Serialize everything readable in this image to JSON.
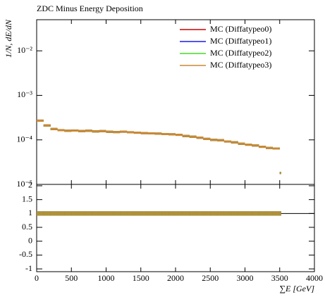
{
  "chart_data": [
    {
      "type": "histogram",
      "title": "ZDC Minus Energy Deposition",
      "ylabel": "1/N, dE/dN",
      "log_y": true,
      "ylim": [
        1e-05,
        0.05
      ],
      "yticks": [
        {
          "value": 1e-05,
          "label": "10⁻⁵"
        },
        {
          "value": 0.0001,
          "label": "10⁻⁴"
        },
        {
          "value": 0.001,
          "label": "10⁻³"
        },
        {
          "value": 0.01,
          "label": "10⁻²"
        }
      ],
      "xlim": [
        0,
        4000
      ],
      "bins": [
        0,
        100,
        200,
        300,
        400,
        500,
        600,
        700,
        800,
        900,
        1000,
        1100,
        1200,
        1300,
        1400,
        1500,
        1600,
        1700,
        1800,
        1900,
        2000,
        2100,
        2200,
        2300,
        2400,
        2500,
        2600,
        2700,
        2800,
        2900,
        3000,
        3100,
        3200,
        3300,
        3400,
        3500,
        3520
      ],
      "legend": "upper right",
      "series": [
        {
          "name": "MC (Diffatypeo0)",
          "color": "#cc0000",
          "values": [
            0.00027,
            0.00021,
            0.000175,
            0.000165,
            0.00016,
            0.000162,
            0.000158,
            0.00016,
            0.000155,
            0.000157,
            0.000152,
            0.00015,
            0.000153,
            0.000148,
            0.000145,
            0.000142,
            0.00014,
            0.000138,
            0.000135,
            0.000133,
            0.00013,
            0.000122,
            0.000118,
            0.000112,
            0.000105,
            0.0001,
            9.8e-05,
            9.2e-05,
            8.8e-05,
            8.2e-05,
            7.8e-05,
            7.5e-05,
            7e-05,
            6.6e-05,
            6.4e-05,
            1.8e-05
          ]
        },
        {
          "name": "MC (Diffatypeo1)",
          "color": "#1a1aee",
          "values": [
            0.00027,
            0.00021,
            0.000175,
            0.000165,
            0.00016,
            0.000162,
            0.000158,
            0.00016,
            0.000155,
            0.000157,
            0.000152,
            0.00015,
            0.000153,
            0.000148,
            0.000145,
            0.000142,
            0.00014,
            0.000138,
            0.000135,
            0.000133,
            0.00013,
            0.000122,
            0.000118,
            0.000112,
            0.000105,
            0.0001,
            9.8e-05,
            9.2e-05,
            8.8e-05,
            8.2e-05,
            7.8e-05,
            7.5e-05,
            7e-05,
            6.6e-05,
            6.4e-05,
            1.8e-05
          ]
        },
        {
          "name": "MC (Diffatypeo2)",
          "color": "#44dd22",
          "values": [
            0.00027,
            0.00021,
            0.000175,
            0.000165,
            0.00016,
            0.000162,
            0.000158,
            0.00016,
            0.000155,
            0.000157,
            0.000152,
            0.00015,
            0.000153,
            0.000148,
            0.000145,
            0.000142,
            0.00014,
            0.000138,
            0.000135,
            0.000133,
            0.00013,
            0.000122,
            0.000118,
            0.000112,
            0.000105,
            0.0001,
            9.8e-05,
            9.2e-05,
            8.8e-05,
            8.2e-05,
            7.8e-05,
            7.5e-05,
            7e-05,
            6.6e-05,
            6.4e-05,
            1.8e-05
          ]
        },
        {
          "name": "MC (Diffatypeo3)",
          "color": "#cc8833",
          "values": [
            0.00027,
            0.00021,
            0.000175,
            0.000165,
            0.00016,
            0.000162,
            0.000158,
            0.00016,
            0.000155,
            0.000157,
            0.000152,
            0.00015,
            0.000153,
            0.000148,
            0.000145,
            0.000142,
            0.00014,
            0.000138,
            0.000135,
            0.000133,
            0.00013,
            0.000122,
            0.000118,
            0.000112,
            0.000105,
            0.0001,
            9.8e-05,
            9.2e-05,
            8.8e-05,
            8.2e-05,
            7.8e-05,
            7.5e-05,
            7e-05,
            6.6e-05,
            6.4e-05,
            1.8e-05
          ]
        }
      ]
    },
    {
      "type": "ratio",
      "xlabel": "∑E [GeV]",
      "xlim": [
        0,
        4000
      ],
      "xticks": [
        0,
        500,
        1000,
        1500,
        2000,
        2500,
        3000,
        3500,
        4000
      ],
      "ylim": [
        -1.1,
        2.05
      ],
      "yticks": [
        -1,
        -0.5,
        0,
        0.5,
        1,
        1.5,
        2
      ],
      "reference": 1,
      "series": [
        {
          "color": "#cc0000",
          "values": [
            1,
            1,
            1,
            1,
            1,
            1,
            1,
            1,
            1,
            1,
            1,
            1,
            1,
            1,
            1,
            1,
            1,
            1,
            1,
            1,
            1,
            1,
            1,
            1,
            1,
            1,
            1,
            1,
            1,
            1,
            1,
            1,
            1,
            1,
            1,
            1
          ]
        },
        {
          "color": "#1a1aee",
          "values": [
            1,
            1,
            1,
            1,
            1,
            1,
            1,
            1,
            1,
            1,
            1,
            1,
            1,
            1,
            1,
            1,
            1,
            1,
            1,
            1,
            1,
            1,
            1,
            1,
            1,
            1,
            1,
            1,
            1,
            1,
            1,
            1,
            1,
            1,
            1,
            1
          ]
        },
        {
          "color": "#44dd22",
          "values": [
            1,
            1,
            1,
            1,
            1,
            1,
            1,
            1,
            1,
            1,
            1,
            1,
            1,
            1,
            1,
            1,
            1,
            1,
            1,
            1,
            1,
            1,
            1,
            1,
            1,
            1,
            1,
            1,
            1,
            1,
            1,
            1,
            1,
            1,
            1,
            1
          ]
        },
        {
          "color": "#cc8833",
          "values": [
            1,
            1,
            1,
            1,
            1,
            1,
            1,
            1,
            1,
            1,
            1,
            1,
            1,
            1,
            1,
            1,
            1,
            1,
            1,
            1,
            1,
            1,
            1,
            1,
            1,
            1,
            1,
            1,
            1,
            1,
            1,
            1,
            1,
            1,
            1,
            1
          ]
        }
      ]
    }
  ]
}
